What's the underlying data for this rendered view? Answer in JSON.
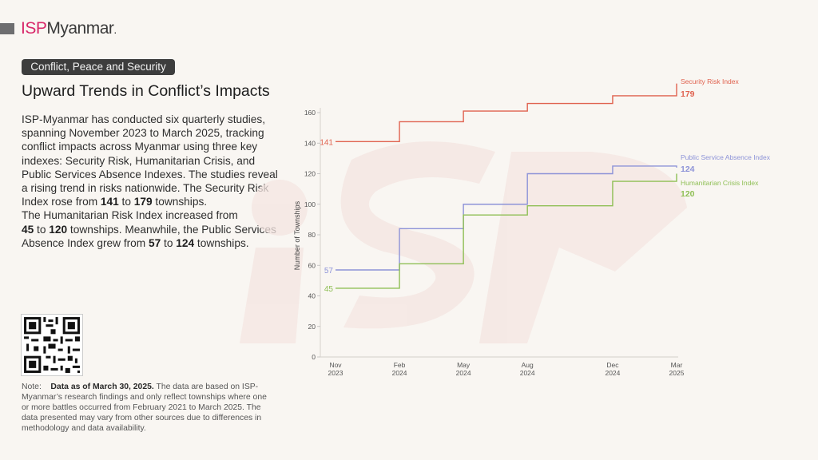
{
  "brand": {
    "isp": "ISP",
    "name": "Myanmar",
    "dot": "."
  },
  "tag": "Conflict, Peace and Security",
  "title": "Upward Trends in Conflict’s Impacts",
  "body": {
    "p1": "ISP-Myanmar has conducted six quarterly studies, spanning November 2023 to March 2025, tracking conflict impacts across Myanmar using three key indexes: Security Risk, Humanitarian Crisis, and Public Services Absence Indexes. The studies reveal a rising trend in risks nationwide. The Security Risk Index rose from ",
    "sec_from": "141",
    "to1": " to ",
    "sec_to": "179",
    "p2": " townships.",
    "p3": "The Humanitarian Risk Index increased from ",
    "hum_from": "45",
    "to2": " to ",
    "hum_to": "120",
    "p4": " townships. Meanwhile, the Public Services Absence Index grew from ",
    "pub_from": "57",
    "to3": " to ",
    "pub_to": "124",
    "p5": " townships."
  },
  "note": {
    "label": "Note:",
    "bold": "Data as of March 30, 2025.",
    "text": " The data are based on ISP-Myanmar’s research findings and only reflect townships where one or more battles occurred from February 2021 to March 2025. The data presented may vary from other sources due to differences in methodology and data availability."
  },
  "qr_code": "qr-code-icon",
  "chart_data": {
    "type": "line",
    "step": true,
    "title": "",
    "xlabel": "",
    "ylabel": "Number of Townships",
    "ylim": [
      0,
      160
    ],
    "yticks": [
      0,
      20,
      40,
      60,
      80,
      100,
      120,
      140,
      160
    ],
    "x": [
      "Nov 2023",
      "Feb 2024",
      "May 2024",
      "Aug 2024",
      "Dec 2024",
      "Mar 2025"
    ],
    "x_months": [
      0,
      3,
      6,
      9,
      13,
      16
    ],
    "xtick_labels": [
      {
        "m": "Nov",
        "y": "2023"
      },
      {
        "m": "Feb",
        "y": "2024"
      },
      {
        "m": "May",
        "y": "2024"
      },
      {
        "m": "Aug",
        "y": "2024"
      },
      {
        "m": "Dec",
        "y": "2024"
      },
      {
        "m": "Mar",
        "y": "2025"
      }
    ],
    "series": [
      {
        "name": "Security Risk Index",
        "color": "#e0624f",
        "values": [
          141,
          154,
          161,
          166,
          171,
          179
        ],
        "start_label": "141",
        "end_label": "179"
      },
      {
        "name": "Public Service Absence Index",
        "color": "#8d93d8",
        "values": [
          57,
          84,
          100,
          120,
          125,
          124
        ],
        "start_label": "57",
        "end_label": "124"
      },
      {
        "name": "Humanitarian Crisis Index",
        "color": "#8fbf55",
        "values": [
          45,
          61,
          93,
          99,
          115,
          120
        ],
        "start_label": "45",
        "end_label": "120"
      }
    ],
    "grid": false,
    "legend": "right-end labels"
  }
}
